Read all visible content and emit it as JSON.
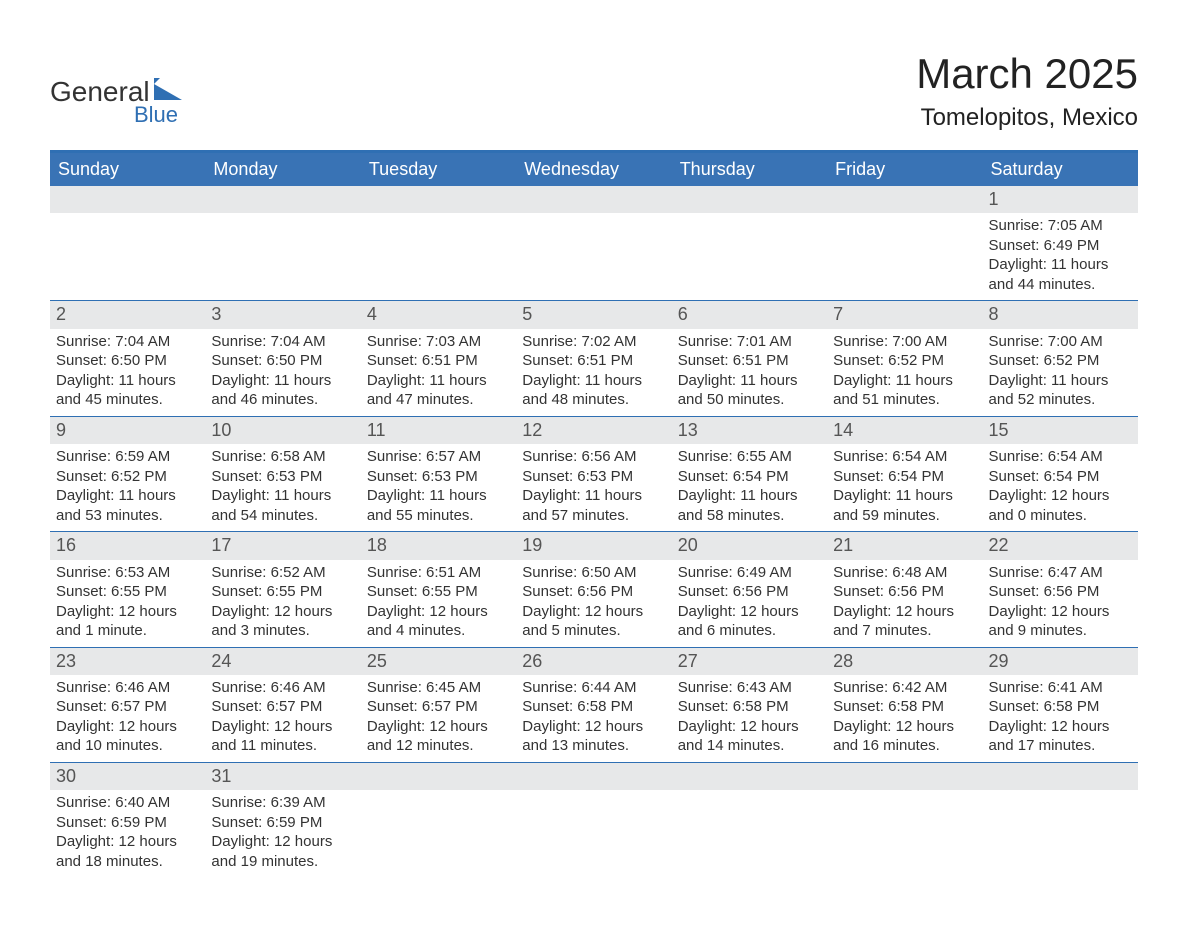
{
  "logo": {
    "text_general": "General",
    "text_blue": "Blue",
    "shape_color": "#2f6fb3"
  },
  "header": {
    "month_title": "March 2025",
    "location": "Tomelopitos, Mexico"
  },
  "colors": {
    "header_bg": "#3973b5",
    "header_text": "#ffffff",
    "border": "#2f6fb3",
    "daynum_bg": "#e7e8e9",
    "body_text": "#333333",
    "background": "#ffffff"
  },
  "day_names": [
    "Sunday",
    "Monday",
    "Tuesday",
    "Wednesday",
    "Thursday",
    "Friday",
    "Saturday"
  ],
  "weeks": [
    [
      null,
      null,
      null,
      null,
      null,
      null,
      {
        "num": "1",
        "sunrise": "Sunrise: 7:05 AM",
        "sunset": "Sunset: 6:49 PM",
        "daylight": "Daylight: 11 hours and 44 minutes."
      }
    ],
    [
      {
        "num": "2",
        "sunrise": "Sunrise: 7:04 AM",
        "sunset": "Sunset: 6:50 PM",
        "daylight": "Daylight: 11 hours and 45 minutes."
      },
      {
        "num": "3",
        "sunrise": "Sunrise: 7:04 AM",
        "sunset": "Sunset: 6:50 PM",
        "daylight": "Daylight: 11 hours and 46 minutes."
      },
      {
        "num": "4",
        "sunrise": "Sunrise: 7:03 AM",
        "sunset": "Sunset: 6:51 PM",
        "daylight": "Daylight: 11 hours and 47 minutes."
      },
      {
        "num": "5",
        "sunrise": "Sunrise: 7:02 AM",
        "sunset": "Sunset: 6:51 PM",
        "daylight": "Daylight: 11 hours and 48 minutes."
      },
      {
        "num": "6",
        "sunrise": "Sunrise: 7:01 AM",
        "sunset": "Sunset: 6:51 PM",
        "daylight": "Daylight: 11 hours and 50 minutes."
      },
      {
        "num": "7",
        "sunrise": "Sunrise: 7:00 AM",
        "sunset": "Sunset: 6:52 PM",
        "daylight": "Daylight: 11 hours and 51 minutes."
      },
      {
        "num": "8",
        "sunrise": "Sunrise: 7:00 AM",
        "sunset": "Sunset: 6:52 PM",
        "daylight": "Daylight: 11 hours and 52 minutes."
      }
    ],
    [
      {
        "num": "9",
        "sunrise": "Sunrise: 6:59 AM",
        "sunset": "Sunset: 6:52 PM",
        "daylight": "Daylight: 11 hours and 53 minutes."
      },
      {
        "num": "10",
        "sunrise": "Sunrise: 6:58 AM",
        "sunset": "Sunset: 6:53 PM",
        "daylight": "Daylight: 11 hours and 54 minutes."
      },
      {
        "num": "11",
        "sunrise": "Sunrise: 6:57 AM",
        "sunset": "Sunset: 6:53 PM",
        "daylight": "Daylight: 11 hours and 55 minutes."
      },
      {
        "num": "12",
        "sunrise": "Sunrise: 6:56 AM",
        "sunset": "Sunset: 6:53 PM",
        "daylight": "Daylight: 11 hours and 57 minutes."
      },
      {
        "num": "13",
        "sunrise": "Sunrise: 6:55 AM",
        "sunset": "Sunset: 6:54 PM",
        "daylight": "Daylight: 11 hours and 58 minutes."
      },
      {
        "num": "14",
        "sunrise": "Sunrise: 6:54 AM",
        "sunset": "Sunset: 6:54 PM",
        "daylight": "Daylight: 11 hours and 59 minutes."
      },
      {
        "num": "15",
        "sunrise": "Sunrise: 6:54 AM",
        "sunset": "Sunset: 6:54 PM",
        "daylight": "Daylight: 12 hours and 0 minutes."
      }
    ],
    [
      {
        "num": "16",
        "sunrise": "Sunrise: 6:53 AM",
        "sunset": "Sunset: 6:55 PM",
        "daylight": "Daylight: 12 hours and 1 minute."
      },
      {
        "num": "17",
        "sunrise": "Sunrise: 6:52 AM",
        "sunset": "Sunset: 6:55 PM",
        "daylight": "Daylight: 12 hours and 3 minutes."
      },
      {
        "num": "18",
        "sunrise": "Sunrise: 6:51 AM",
        "sunset": "Sunset: 6:55 PM",
        "daylight": "Daylight: 12 hours and 4 minutes."
      },
      {
        "num": "19",
        "sunrise": "Sunrise: 6:50 AM",
        "sunset": "Sunset: 6:56 PM",
        "daylight": "Daylight: 12 hours and 5 minutes."
      },
      {
        "num": "20",
        "sunrise": "Sunrise: 6:49 AM",
        "sunset": "Sunset: 6:56 PM",
        "daylight": "Daylight: 12 hours and 6 minutes."
      },
      {
        "num": "21",
        "sunrise": "Sunrise: 6:48 AM",
        "sunset": "Sunset: 6:56 PM",
        "daylight": "Daylight: 12 hours and 7 minutes."
      },
      {
        "num": "22",
        "sunrise": "Sunrise: 6:47 AM",
        "sunset": "Sunset: 6:56 PM",
        "daylight": "Daylight: 12 hours and 9 minutes."
      }
    ],
    [
      {
        "num": "23",
        "sunrise": "Sunrise: 6:46 AM",
        "sunset": "Sunset: 6:57 PM",
        "daylight": "Daylight: 12 hours and 10 minutes."
      },
      {
        "num": "24",
        "sunrise": "Sunrise: 6:46 AM",
        "sunset": "Sunset: 6:57 PM",
        "daylight": "Daylight: 12 hours and 11 minutes."
      },
      {
        "num": "25",
        "sunrise": "Sunrise: 6:45 AM",
        "sunset": "Sunset: 6:57 PM",
        "daylight": "Daylight: 12 hours and 12 minutes."
      },
      {
        "num": "26",
        "sunrise": "Sunrise: 6:44 AM",
        "sunset": "Sunset: 6:58 PM",
        "daylight": "Daylight: 12 hours and 13 minutes."
      },
      {
        "num": "27",
        "sunrise": "Sunrise: 6:43 AM",
        "sunset": "Sunset: 6:58 PM",
        "daylight": "Daylight: 12 hours and 14 minutes."
      },
      {
        "num": "28",
        "sunrise": "Sunrise: 6:42 AM",
        "sunset": "Sunset: 6:58 PM",
        "daylight": "Daylight: 12 hours and 16 minutes."
      },
      {
        "num": "29",
        "sunrise": "Sunrise: 6:41 AM",
        "sunset": "Sunset: 6:58 PM",
        "daylight": "Daylight: 12 hours and 17 minutes."
      }
    ],
    [
      {
        "num": "30",
        "sunrise": "Sunrise: 6:40 AM",
        "sunset": "Sunset: 6:59 PM",
        "daylight": "Daylight: 12 hours and 18 minutes."
      },
      {
        "num": "31",
        "sunrise": "Sunrise: 6:39 AM",
        "sunset": "Sunset: 6:59 PM",
        "daylight": "Daylight: 12 hours and 19 minutes."
      },
      null,
      null,
      null,
      null,
      null
    ]
  ]
}
